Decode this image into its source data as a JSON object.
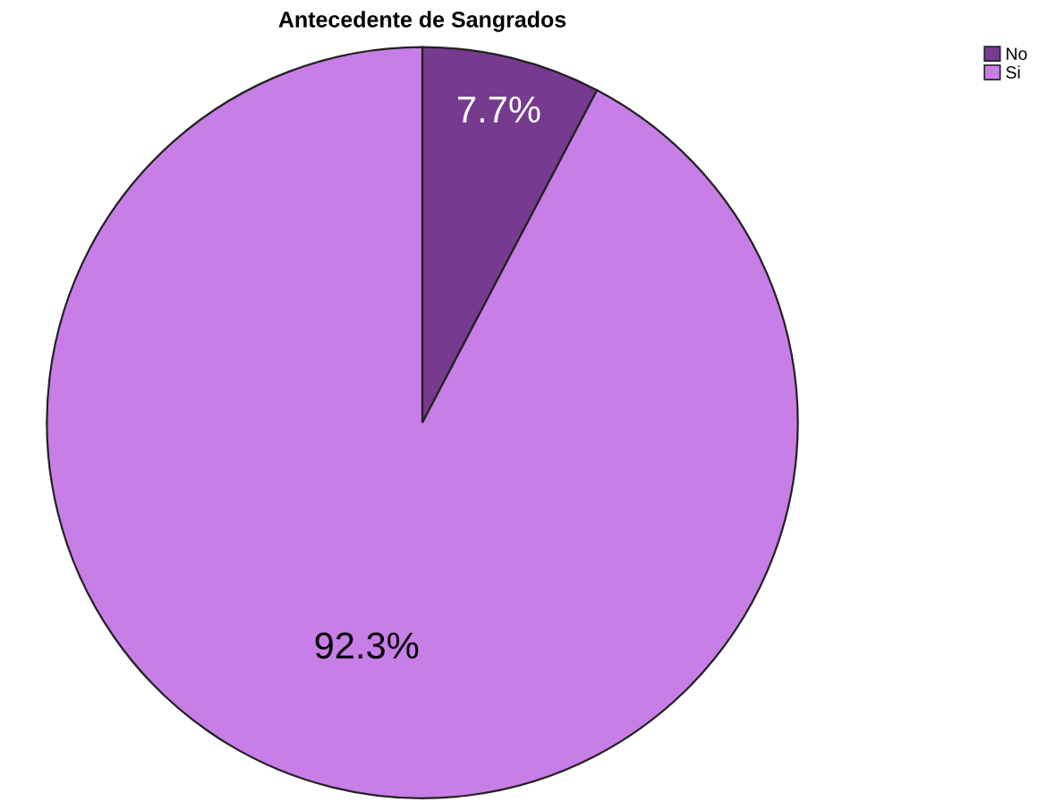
{
  "chart_data": {
    "type": "pie",
    "title": "Antecedente de Sangrados",
    "categories": [
      "No",
      "Si"
    ],
    "values": [
      7.7,
      92.3
    ],
    "value_labels": [
      "7.7%",
      "92.3%"
    ],
    "colors": [
      "#763a8f",
      "#c77ee6"
    ],
    "legend": "top right"
  }
}
